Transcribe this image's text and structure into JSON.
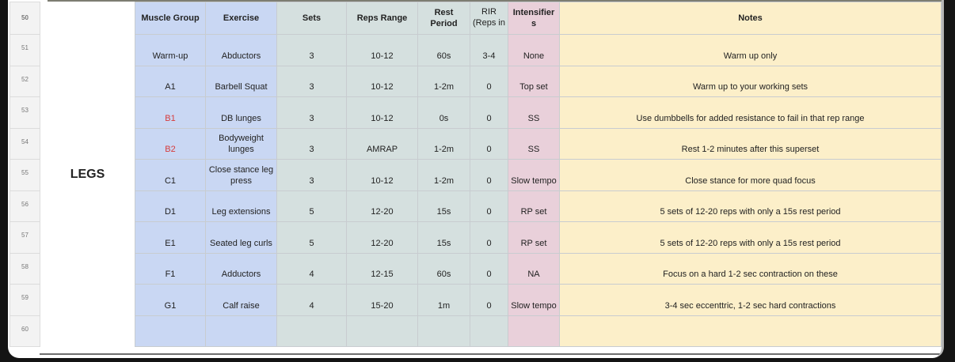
{
  "row_numbers": [
    "50",
    "51",
    "52",
    "53",
    "54",
    "55",
    "56",
    "57",
    "58",
    "59",
    "60"
  ],
  "section_label": "LEGS",
  "headers": {
    "muscle_group": "Muscle Group",
    "exercise": "Exercise",
    "sets": "Sets",
    "reps_range": "Reps Range",
    "rest_period": "Rest Period",
    "rir": "RIR (Reps in",
    "intensifiers": "Intensifier s",
    "notes": "Notes"
  },
  "colors": {
    "blue": "#c9d7f3",
    "green": "#d5e0df",
    "pink": "#e9d0da",
    "yellow": "#fcefc9",
    "red_text": "#d63b3b"
  },
  "rows": [
    {
      "group": "Warm-up",
      "exercise": "Abductors",
      "sets": "3",
      "reps": "10-12",
      "rest": "60s",
      "rir": "3-4",
      "intensifier": "None",
      "notes": "Warm up only"
    },
    {
      "group": "A1",
      "exercise": "Barbell Squat",
      "sets": "3",
      "reps": "10-12",
      "rest": "1-2m",
      "rir": "0",
      "intensifier": "Top set",
      "notes": "Warm up to your working sets"
    },
    {
      "group": "B1",
      "exercise": "DB lunges",
      "sets": "3",
      "reps": "10-12",
      "rest": "0s",
      "rir": "0",
      "intensifier": "SS",
      "notes": "Use dumbbells for added resistance to fail in that rep range"
    },
    {
      "group": "B2",
      "exercise": "Bodyweight lunges",
      "sets": "3",
      "reps": "AMRAP",
      "rest": "1-2m",
      "rir": "0",
      "intensifier": "SS",
      "notes": "Rest 1-2 minutes after this superset"
    },
    {
      "group": "C1",
      "exercise": "Close stance leg press",
      "sets": "3",
      "reps": "10-12",
      "rest": "1-2m",
      "rir": "0",
      "intensifier": "Slow tempo",
      "notes": "Close stance for more quad focus"
    },
    {
      "group": "D1",
      "exercise": "Leg extensions",
      "sets": "5",
      "reps": "12-20",
      "rest": "15s",
      "rir": "0",
      "intensifier": "RP set",
      "notes": "5 sets of 12-20 reps with only a 15s rest period"
    },
    {
      "group": "E1",
      "exercise": "Seated leg curls",
      "sets": "5",
      "reps": "12-20",
      "rest": "15s",
      "rir": "0",
      "intensifier": "RP set",
      "notes": "5 sets of 12-20 reps with only a 15s rest period"
    },
    {
      "group": "F1",
      "exercise": "Adductors",
      "sets": "4",
      "reps": "12-15",
      "rest": "60s",
      "rir": "0",
      "intensifier": "NA",
      "notes": "Focus on a hard 1-2 sec contraction on these"
    },
    {
      "group": "G1",
      "exercise": "Calf raise",
      "sets": "4",
      "reps": "15-20",
      "rest": "1m",
      "rir": "0",
      "intensifier": "Slow tempo",
      "notes": "3-4 sec eccenttric, 1-2 sec hard contractions"
    },
    {
      "group": "",
      "exercise": "",
      "sets": "",
      "reps": "",
      "rest": "",
      "rir": "",
      "intensifier": "",
      "notes": ""
    }
  ]
}
